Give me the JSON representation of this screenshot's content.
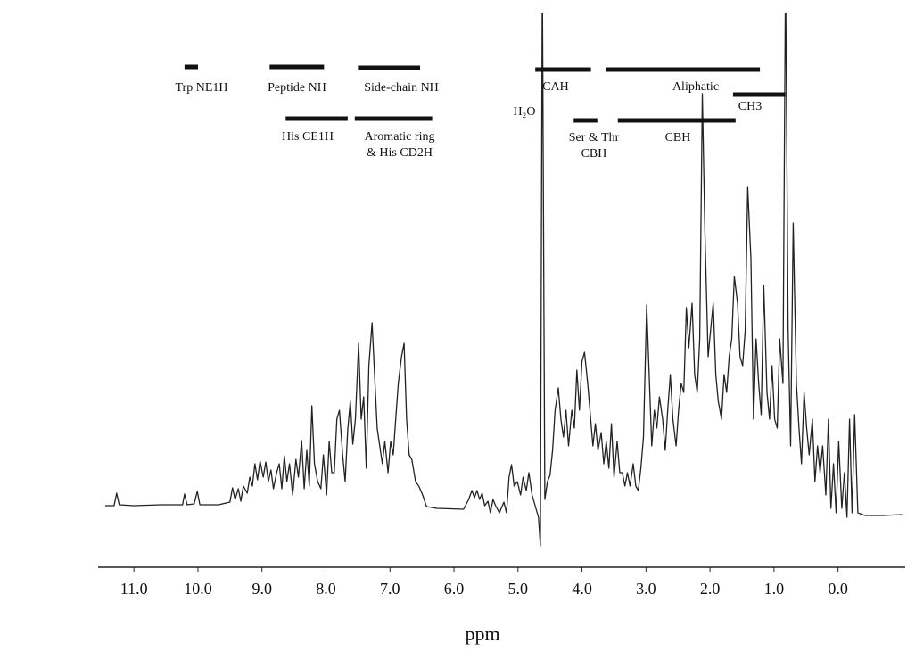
{
  "chart_data": {
    "type": "line",
    "x_label": "ppm",
    "xlim": [
      11.56,
      -1.05
    ],
    "ylim": [
      -50,
      550
    ],
    "xticks": [
      {
        "value": 11,
        "label": "11.0"
      },
      {
        "value": 10,
        "label": "10.0"
      },
      {
        "value": 9,
        "label": "9.0"
      },
      {
        "value": 8,
        "label": "8.0"
      },
      {
        "value": 7,
        "label": "7.0"
      },
      {
        "value": 6,
        "label": "6.0"
      },
      {
        "value": 5,
        "label": "5.0"
      },
      {
        "value": 4,
        "label": "4.0"
      },
      {
        "value": 3,
        "label": "3.0"
      },
      {
        "value": 2,
        "label": "2.0"
      },
      {
        "value": 1,
        "label": "1.0"
      },
      {
        "value": 0,
        "label": "0.0"
      }
    ],
    "color": "#222222",
    "x": [
      11.45,
      11.31,
      11.27,
      11.23,
      11.0,
      10.59,
      10.24,
      10.21,
      10.17,
      10.06,
      10.01,
      9.97,
      9.68,
      9.5,
      9.46,
      9.42,
      9.37,
      9.33,
      9.29,
      9.23,
      9.19,
      9.15,
      9.11,
      9.07,
      9.03,
      8.98,
      8.94,
      8.9,
      8.86,
      8.82,
      8.77,
      8.73,
      8.69,
      8.65,
      8.61,
      8.57,
      8.52,
      8.47,
      8.43,
      8.38,
      8.34,
      8.3,
      8.26,
      8.22,
      8.18,
      8.13,
      8.08,
      8.04,
      7.99,
      7.95,
      7.91,
      7.87,
      7.83,
      7.79,
      7.74,
      7.7,
      7.66,
      7.62,
      7.58,
      7.54,
      7.49,
      7.45,
      7.41,
      7.37,
      7.33,
      7.28,
      7.24,
      7.2,
      7.16,
      7.12,
      7.08,
      7.03,
      6.99,
      6.95,
      6.91,
      6.87,
      6.82,
      6.78,
      6.74,
      6.7,
      6.66,
      6.6,
      6.55,
      6.49,
      6.43,
      6.27,
      5.85,
      5.77,
      5.72,
      5.68,
      5.64,
      5.6,
      5.56,
      5.52,
      5.47,
      5.43,
      5.39,
      5.35,
      5.29,
      5.22,
      5.18,
      5.14,
      5.1,
      5.06,
      5.01,
      4.96,
      4.92,
      4.87,
      4.83,
      4.78,
      4.72,
      4.68,
      4.65,
      4.62,
      4.58,
      4.54,
      4.5,
      4.46,
      4.42,
      4.37,
      4.33,
      4.29,
      4.25,
      4.21,
      4.16,
      4.12,
      4.08,
      4.04,
      4.0,
      3.96,
      3.91,
      3.87,
      3.83,
      3.79,
      3.75,
      3.7,
      3.66,
      3.62,
      3.58,
      3.54,
      3.5,
      3.45,
      3.41,
      3.37,
      3.33,
      3.29,
      3.25,
      3.2,
      3.16,
      3.12,
      3.08,
      3.04,
      2.99,
      2.95,
      2.91,
      2.87,
      2.83,
      2.79,
      2.74,
      2.7,
      2.66,
      2.62,
      2.58,
      2.53,
      2.49,
      2.45,
      2.41,
      2.37,
      2.33,
      2.28,
      2.24,
      2.2,
      2.16,
      2.12,
      2.08,
      2.03,
      1.99,
      1.95,
      1.91,
      1.87,
      1.82,
      1.78,
      1.74,
      1.7,
      1.66,
      1.62,
      1.57,
      1.53,
      1.49,
      1.45,
      1.41,
      1.36,
      1.32,
      1.28,
      1.24,
      1.2,
      1.16,
      1.11,
      1.07,
      1.03,
      0.99,
      0.95,
      0.91,
      0.86,
      0.82,
      0.78,
      0.74,
      0.7,
      0.65,
      0.61,
      0.57,
      0.53,
      0.49,
      0.45,
      0.4,
      0.36,
      0.32,
      0.28,
      0.24,
      0.19,
      0.15,
      0.11,
      0.07,
      0.03,
      -0.01,
      -0.06,
      -0.1,
      -0.14,
      -0.18,
      -0.22,
      -0.26,
      -0.31,
      -0.42,
      -0.7,
      -1.0
    ],
    "values": [
      0,
      0,
      14,
      1,
      0,
      1,
      1,
      13,
      1,
      2,
      16,
      1,
      1,
      4,
      20,
      7,
      19,
      5,
      22,
      14,
      32,
      22,
      47,
      29,
      50,
      32,
      49,
      27,
      40,
      19,
      37,
      47,
      19,
      56,
      27,
      47,
      12,
      52,
      32,
      73,
      19,
      62,
      22,
      112,
      47,
      27,
      19,
      57,
      12,
      72,
      37,
      37,
      97,
      107,
      57,
      27,
      85,
      117,
      69,
      97,
      182,
      97,
      122,
      42,
      157,
      205,
      147,
      87,
      67,
      47,
      72,
      37,
      72,
      57,
      97,
      137,
      167,
      182,
      97,
      57,
      52,
      27,
      22,
      12,
      -1,
      -3,
      -4,
      7,
      17,
      9,
      17,
      7,
      14,
      0,
      5,
      -8,
      7,
      0,
      -8,
      4,
      -8,
      32,
      46,
      22,
      27,
      12,
      32,
      17,
      37,
      12,
      -3,
      -13,
      -45,
      600,
      7,
      27,
      34,
      62,
      107,
      132,
      97,
      77,
      107,
      67,
      107,
      87,
      152,
      107,
      162,
      172,
      137,
      102,
      67,
      92,
      62,
      82,
      47,
      72,
      42,
      92,
      32,
      72,
      37,
      37,
      22,
      37,
      22,
      47,
      22,
      17,
      42,
      77,
      225,
      147,
      67,
      107,
      87,
      122,
      97,
      62,
      107,
      147,
      97,
      67,
      107,
      137,
      127,
      222,
      177,
      227,
      147,
      127,
      187,
      462,
      307,
      167,
      197,
      227,
      147,
      117,
      97,
      147,
      127,
      167,
      187,
      257,
      227,
      167,
      157,
      197,
      357,
      277,
      97,
      187,
      137,
      102,
      247,
      127,
      97,
      157,
      97,
      87,
      187,
      137,
      600,
      197,
      67,
      317,
      137,
      87,
      47,
      127,
      87,
      57,
      97,
      27,
      67,
      37,
      67,
      12,
      97,
      -3,
      47,
      -8,
      72,
      -3,
      37,
      -13,
      97,
      -8,
      102,
      -8,
      -11,
      -11,
      -10
    ],
    "regions": [
      {
        "label": [
          "Trp NE1H"
        ],
        "range": [
          10.21,
          10.0
        ]
      },
      {
        "label": [
          "Peptide NH"
        ],
        "range": [
          8.88,
          8.03
        ]
      },
      {
        "label": [
          "Side-chain NH"
        ],
        "range": [
          7.5,
          6.53
        ]
      },
      {
        "label": [
          "His CE1H"
        ],
        "range": [
          8.63,
          7.66
        ]
      },
      {
        "label": [
          "Aromatic ring",
          "& His CD2H"
        ],
        "range": [
          7.55,
          6.34
        ]
      },
      {
        "label": [
          "CAH"
        ],
        "range": [
          4.73,
          3.86
        ]
      },
      {
        "label": [
          "Aliphatic"
        ],
        "range": [
          3.63,
          1.22
        ]
      },
      {
        "label": [
          "CH3"
        ],
        "range": [
          1.64,
          0.82
        ]
      },
      {
        "label": [
          "Ser & Thr",
          "CBH"
        ],
        "range": [
          4.13,
          3.76
        ]
      },
      {
        "label": [
          "CBH"
        ],
        "range": [
          3.44,
          1.6
        ]
      }
    ],
    "annotation": "H₂O"
  }
}
